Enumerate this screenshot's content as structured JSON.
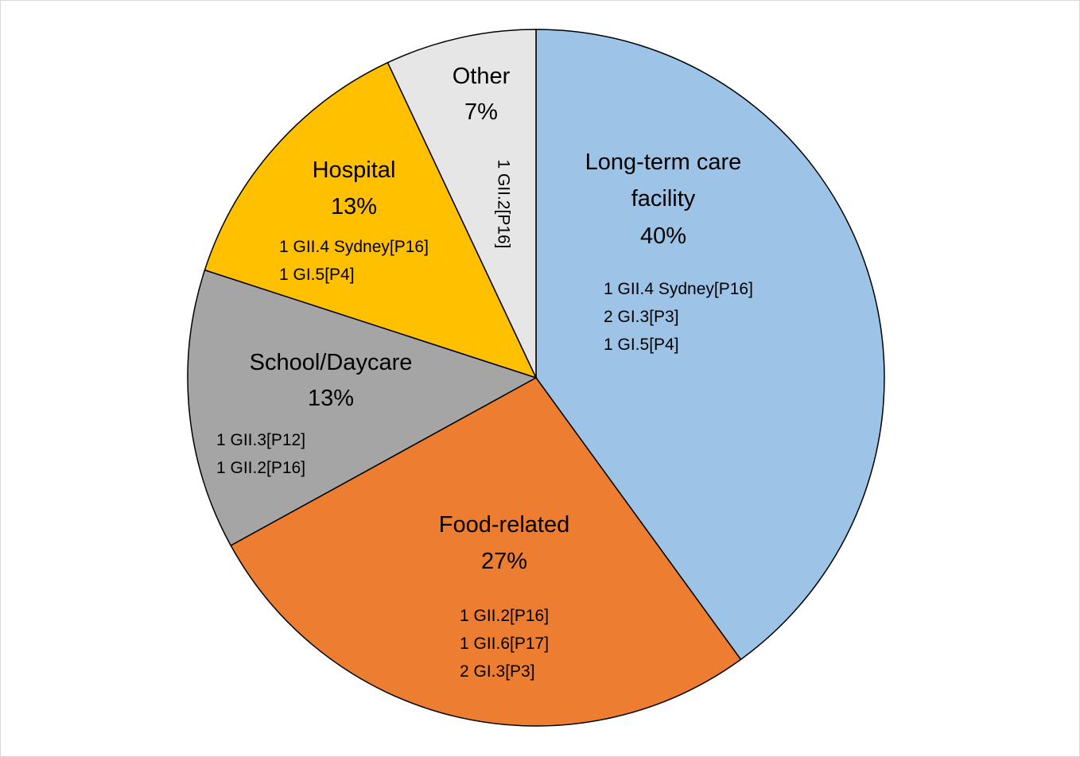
{
  "chart_data": {
    "type": "pie",
    "categories": [
      "Long-term care facility",
      "Food-related",
      "School/Daycare",
      "Hospital",
      "Other"
    ],
    "values": [
      40,
      27,
      13,
      13,
      7
    ],
    "value_labels": [
      "40%",
      "27%",
      "13%",
      "13%",
      "7%"
    ],
    "colors": [
      "#9dc3e6",
      "#ed7d31",
      "#a5a5a5",
      "#ffc000",
      "#e7e6e6"
    ],
    "strains": [
      [
        "1 GII.4 Sydney[P16]",
        "2 GI.3[P3]",
        "1 GI.5[P4]"
      ],
      [
        "1 GII.2[P16]",
        "1 GII.6[P17]",
        "2 GI.3[P3]"
      ],
      [
        "1 GII.3[P12]",
        "1 GII.2[P16]"
      ],
      [
        "1 GII.4 Sydney[P16]",
        "1 GI.5[P4]"
      ],
      [
        "1 GII.2[P16]"
      ]
    ]
  }
}
